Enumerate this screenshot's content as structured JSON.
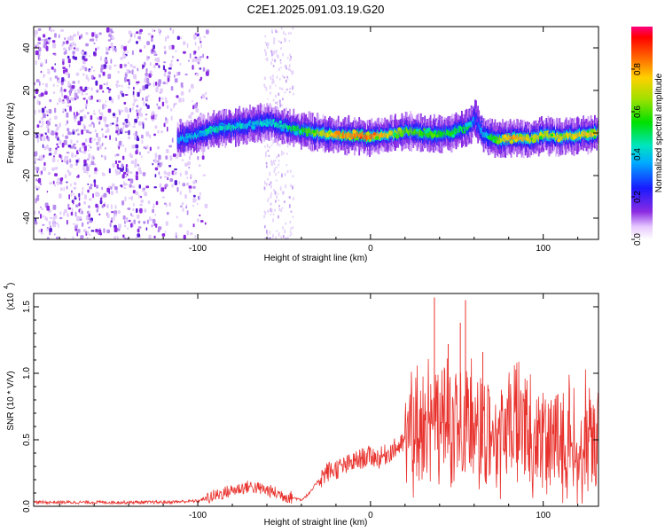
{
  "figure_title": "C2E1.2025.091.03.19.G20",
  "chart_data": [
    {
      "type": "heatmap",
      "title": "C2E1.2025.091.03.19.G20",
      "xlabel": "Height of straight line (km)",
      "ylabel": "Frequency (Hz)",
      "xlim": [
        -195,
        132
      ],
      "ylim": [
        -50,
        50
      ],
      "xticks": [
        -100,
        0,
        100
      ],
      "xtick_labels": [
        "-100",
        "0",
        "100"
      ],
      "yticks": [
        -40,
        -20,
        0,
        20,
        40
      ],
      "ytick_labels": [
        "-40",
        "-20",
        "0",
        "20",
        "40"
      ],
      "colorbar": {
        "label": "Normalized spectral amplitude",
        "range": [
          0.0,
          1.0
        ],
        "ticks": [
          0.0,
          0.2,
          0.4,
          0.6,
          0.8
        ],
        "tick_labels": [
          "0.0",
          "0.2",
          "0.4",
          "0.6",
          "0.8"
        ]
      },
      "ridge_frequency": {
        "x": [
          -112,
          -100,
          -90,
          -80,
          -70,
          -60,
          -50,
          -40,
          -30,
          -20,
          -10,
          0,
          10,
          20,
          30,
          40,
          50,
          57,
          60,
          65,
          75,
          85,
          92,
          100,
          110,
          120,
          132
        ],
        "y": [
          -3,
          -1,
          2,
          3,
          4,
          5,
          3,
          1,
          0,
          -1,
          -1,
          -2,
          -1,
          1,
          0,
          -1,
          1,
          3,
          7,
          -1,
          -3,
          -2,
          -3,
          -1,
          -2,
          -1,
          0
        ]
      },
      "ridge_amplitude": {
        "x": [
          -112,
          -90,
          -60,
          -40,
          -20,
          0,
          20,
          40,
          57,
          60,
          80,
          100,
          132
        ],
        "y": [
          0.35,
          0.45,
          0.4,
          0.55,
          0.8,
          0.85,
          0.6,
          0.55,
          0.5,
          0.25,
          0.8,
          0.7,
          0.75
        ]
      },
      "noise_region_x": [
        -195,
        -95
      ],
      "noise_band_x": [
        -62,
        -45
      ],
      "grid": false
    },
    {
      "type": "line",
      "xlabel": "Height of straight line (km)",
      "ylabel": "SNR (10 * V/V)",
      "y_exponent_label": "(x10",
      "y_exponent": "4",
      "xlim": [
        -195,
        132
      ],
      "ylim": [
        0,
        1.6
      ],
      "xticks": [
        -100,
        0,
        100
      ],
      "xtick_labels": [
        "-100",
        "0",
        "100"
      ],
      "yticks": [
        0.0,
        0.5,
        1.0,
        1.5
      ],
      "ytick_labels": [
        "0.0",
        "0.5",
        "1.0",
        "1.5"
      ],
      "color": "#e8322d",
      "series": [
        {
          "x": [
            -195,
            -150,
            -120,
            -100,
            -90,
            -80,
            -70,
            -60,
            -50,
            -40,
            -35,
            -30,
            -25,
            -20,
            -15,
            -10,
            -5,
            0,
            5,
            10,
            15,
            20,
            25,
            30,
            35,
            40,
            45,
            50,
            55,
            60,
            65,
            70,
            75,
            80,
            85,
            90,
            95,
            100,
            105,
            110,
            115,
            120,
            125,
            132
          ],
          "y": [
            0.03,
            0.03,
            0.03,
            0.04,
            0.08,
            0.12,
            0.15,
            0.12,
            0.08,
            0.05,
            0.1,
            0.2,
            0.26,
            0.28,
            0.3,
            0.33,
            0.36,
            0.38,
            0.36,
            0.4,
            0.44,
            0.48,
            0.55,
            0.58,
            0.6,
            0.62,
            0.6,
            0.58,
            0.6,
            0.6,
            0.55,
            0.52,
            0.52,
            0.55,
            0.6,
            0.55,
            0.5,
            0.52,
            0.48,
            0.5,
            0.52,
            0.5,
            0.5,
            0.55
          ]
        }
      ],
      "peaks": [
        {
          "x": 37,
          "y": 1.57
        },
        {
          "x": 55,
          "y": 1.55
        },
        {
          "x": 45,
          "y": 1.22
        },
        {
          "x": 52,
          "y": 1.38
        },
        {
          "x": 65,
          "y": 1.16
        }
      ],
      "grid": false
    }
  ]
}
